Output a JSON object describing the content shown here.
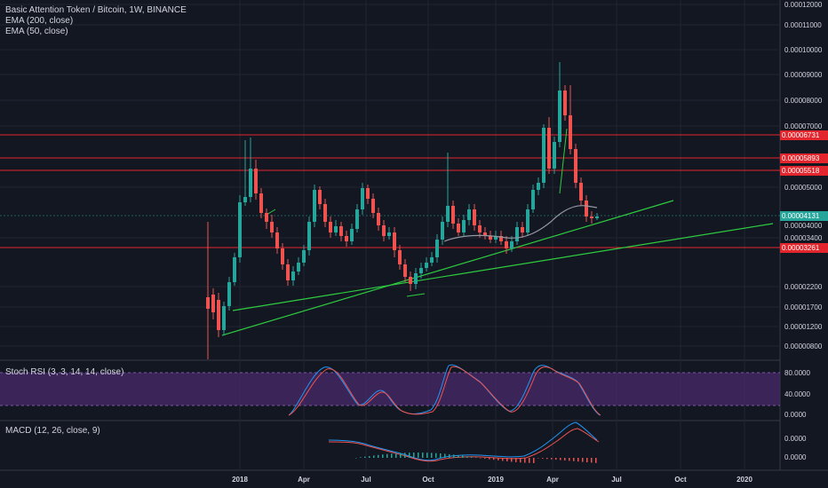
{
  "legend": {
    "main": "Basic Attention Token / Bitcoin, 1W, BINANCE",
    "ema200": "EMA (200, close)",
    "ema50": "EMA (50, close)",
    "stoch": "Stoch RSI (3, 3, 14, 14, close)",
    "macd": "MACD (12, 26, close, 9)"
  },
  "price_axis": [
    "0.00012000",
    "0.00011000",
    "0.00010000",
    "0.00009000",
    "0.00008000",
    "0.00007000",
    "0.00005000",
    "0.00003400",
    "0.00002200",
    "0.00001700",
    "0.00001200",
    "0.00000800"
  ],
  "price_badges": [
    {
      "label": "0.00006731",
      "color": "#e3262d"
    },
    {
      "label": "0.00005893",
      "color": "#e3262d"
    },
    {
      "label": "0.00005518",
      "color": "#e3262d"
    },
    {
      "label": "0.00004131",
      "color": "#26a69a"
    },
    {
      "label": "0.00003261",
      "color": "#e3262d"
    }
  ],
  "extra_labels": {
    "p4000": "0.00004000",
    "p3400": "0.00003400"
  },
  "stoch_axis": [
    "80.0000",
    "40.0000",
    "0.0000"
  ],
  "macd_axis": [
    "0.0000",
    "0.0000"
  ],
  "time_axis": [
    "2018",
    "Apr",
    "Jul",
    "Oct",
    "2019",
    "Apr",
    "Jul",
    "Oct",
    "2020"
  ],
  "colors": {
    "up": "#26a69a",
    "down": "#ef5350",
    "bg": "#131722",
    "grid": "#1f2433",
    "trend": "#2ecc40",
    "resistance": "#e3262d",
    "stoch_band": "#4a2a6b"
  }
}
